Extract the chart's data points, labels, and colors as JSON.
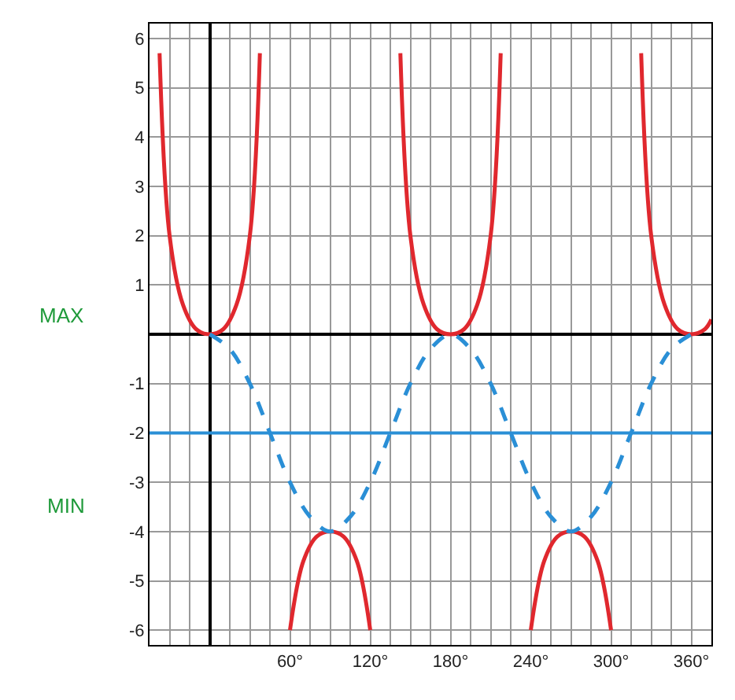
{
  "chart_data": {
    "type": "line",
    "series": [
      {
        "color": "#e0282e",
        "x": [
          -37.5,
          -30,
          -20,
          -10,
          0,
          10,
          20,
          30,
          37.5
        ],
        "values": [
          5.7,
          2,
          0.6,
          0.1,
          0,
          0.1,
          0.6,
          2,
          5.7
        ]
      },
      {
        "color": "#e0282e",
        "x": [
          60,
          70,
          80,
          90,
          100,
          110,
          120
        ],
        "values": [
          -6,
          -4.6,
          -4.1,
          -4,
          -4.1,
          -4.6,
          -6
        ]
      },
      {
        "color": "#e0282e",
        "x": [
          142.5,
          150,
          160,
          170,
          180,
          190,
          200,
          210,
          217.5
        ],
        "values": [
          5.7,
          2,
          0.6,
          0.1,
          0,
          0.1,
          0.6,
          2,
          5.7
        ]
      },
      {
        "color": "#e0282e",
        "x": [
          240,
          250,
          260,
          270,
          280,
          290,
          300
        ],
        "values": [
          -6,
          -4.6,
          -4.1,
          -4,
          -4.1,
          -4.6,
          -6
        ]
      },
      {
        "color": "#e0282e",
        "x": [
          322.5,
          330,
          340,
          350,
          360,
          370,
          375
        ],
        "values": [
          5.7,
          2,
          0.6,
          0.1,
          0,
          0.1,
          0.3
        ]
      },
      {
        "color": "#2a8fd6",
        "line_style": "dashed",
        "x": [
          0,
          15,
          30,
          45,
          60,
          75,
          90,
          105,
          120,
          135,
          150,
          165,
          180,
          195,
          210,
          225,
          240,
          255,
          270,
          285,
          300,
          315,
          330,
          345,
          360
        ],
        "values": [
          0,
          -0.3,
          -1,
          -2,
          -3,
          -3.7,
          -4,
          -3.7,
          -3,
          -2,
          -1,
          -0.3,
          0,
          -0.3,
          -1,
          -2,
          -3,
          -3.7,
          -4,
          -3.7,
          -3,
          -2,
          -1,
          -0.3,
          0
        ]
      }
    ],
    "ref_lines": [
      {
        "axis": "y",
        "value": -2,
        "color": "#2a8fd6"
      }
    ],
    "annotations": [
      "MAX",
      "MIN"
    ],
    "xlim": [
      -45,
      375
    ],
    "xticks": [
      {
        "value": -45,
        "label": null
      },
      {
        "value": -30,
        "label": null
      },
      {
        "value": -15,
        "label": null
      },
      {
        "value": 0,
        "label": null
      },
      {
        "value": 15,
        "label": null
      },
      {
        "value": 30,
        "label": null
      },
      {
        "value": 45,
        "label": null
      },
      {
        "value": 60,
        "label": "60°"
      },
      {
        "value": 75,
        "label": null
      },
      {
        "value": 90,
        "label": null
      },
      {
        "value": 105,
        "label": null
      },
      {
        "value": 120,
        "label": "120°"
      },
      {
        "value": 135,
        "label": null
      },
      {
        "value": 150,
        "label": null
      },
      {
        "value": 165,
        "label": null
      },
      {
        "value": 180,
        "label": "180°"
      },
      {
        "value": 195,
        "label": null
      },
      {
        "value": 210,
        "label": null
      },
      {
        "value": 225,
        "label": null
      },
      {
        "value": 240,
        "label": "240°"
      },
      {
        "value": 255,
        "label": null
      },
      {
        "value": 270,
        "label": null
      },
      {
        "value": 285,
        "label": null
      },
      {
        "value": 300,
        "label": "300°"
      },
      {
        "value": 315,
        "label": null
      },
      {
        "value": 330,
        "label": null
      },
      {
        "value": 345,
        "label": null
      },
      {
        "value": 360,
        "label": "360°"
      },
      {
        "value": 375,
        "label": null
      }
    ],
    "ylim": [
      -6.3,
      6.3
    ],
    "yticks": [
      -6,
      -5,
      -4,
      -3,
      -2,
      -1,
      {
        "value": 0,
        "label": null
      },
      1,
      2,
      3,
      4,
      5,
      6
    ],
    "grid": true,
    "marker": "none"
  }
}
